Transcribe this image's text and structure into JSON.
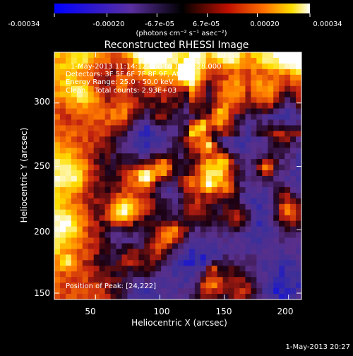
{
  "colorbar": {
    "tick_labels": [
      "-0.00034",
      "-0.00020",
      "-6.7e-05",
      "6.7e-05",
      "0.00020",
      "0.00034"
    ],
    "unit_label": "(photons cm⁻² s⁻¹ asec⁻²)",
    "range": [
      -0.00034,
      0.00034
    ]
  },
  "chart_data": {
    "type": "heatmap",
    "title": "Reconstructed RHESSI Image",
    "xlabel": "Heliocentric X (arcsec)",
    "ylabel": "Heliocentric Y (arcsec)",
    "xlim": [
      18,
      210
    ],
    "ylim": [
      145,
      340
    ],
    "x_ticks": [
      50,
      100,
      150,
      200
    ],
    "y_ticks": [
      150,
      200,
      250,
      300
    ],
    "annotations": [
      "1-May-2013 11:14:12.000 to 11:16:28.000",
      "Detectors: 3F 5F 6F 7F 8F 9F, Att 0",
      "Energy Range: 25.0 - 50.0 keV",
      "Clean    Total counts: 2.93E+03",
      "Position of Peak: [24,222]"
    ],
    "peak_position": [
      24,
      222
    ],
    "colormap": [
      "#0000ff",
      "#3b2f9a",
      "#5a2f8a",
      "#1a0010",
      "#c02010",
      "#ff7a00",
      "#ffe000",
      "#ffffff"
    ]
  },
  "footer": {
    "timestamp": "1-May-2013 20:27"
  }
}
